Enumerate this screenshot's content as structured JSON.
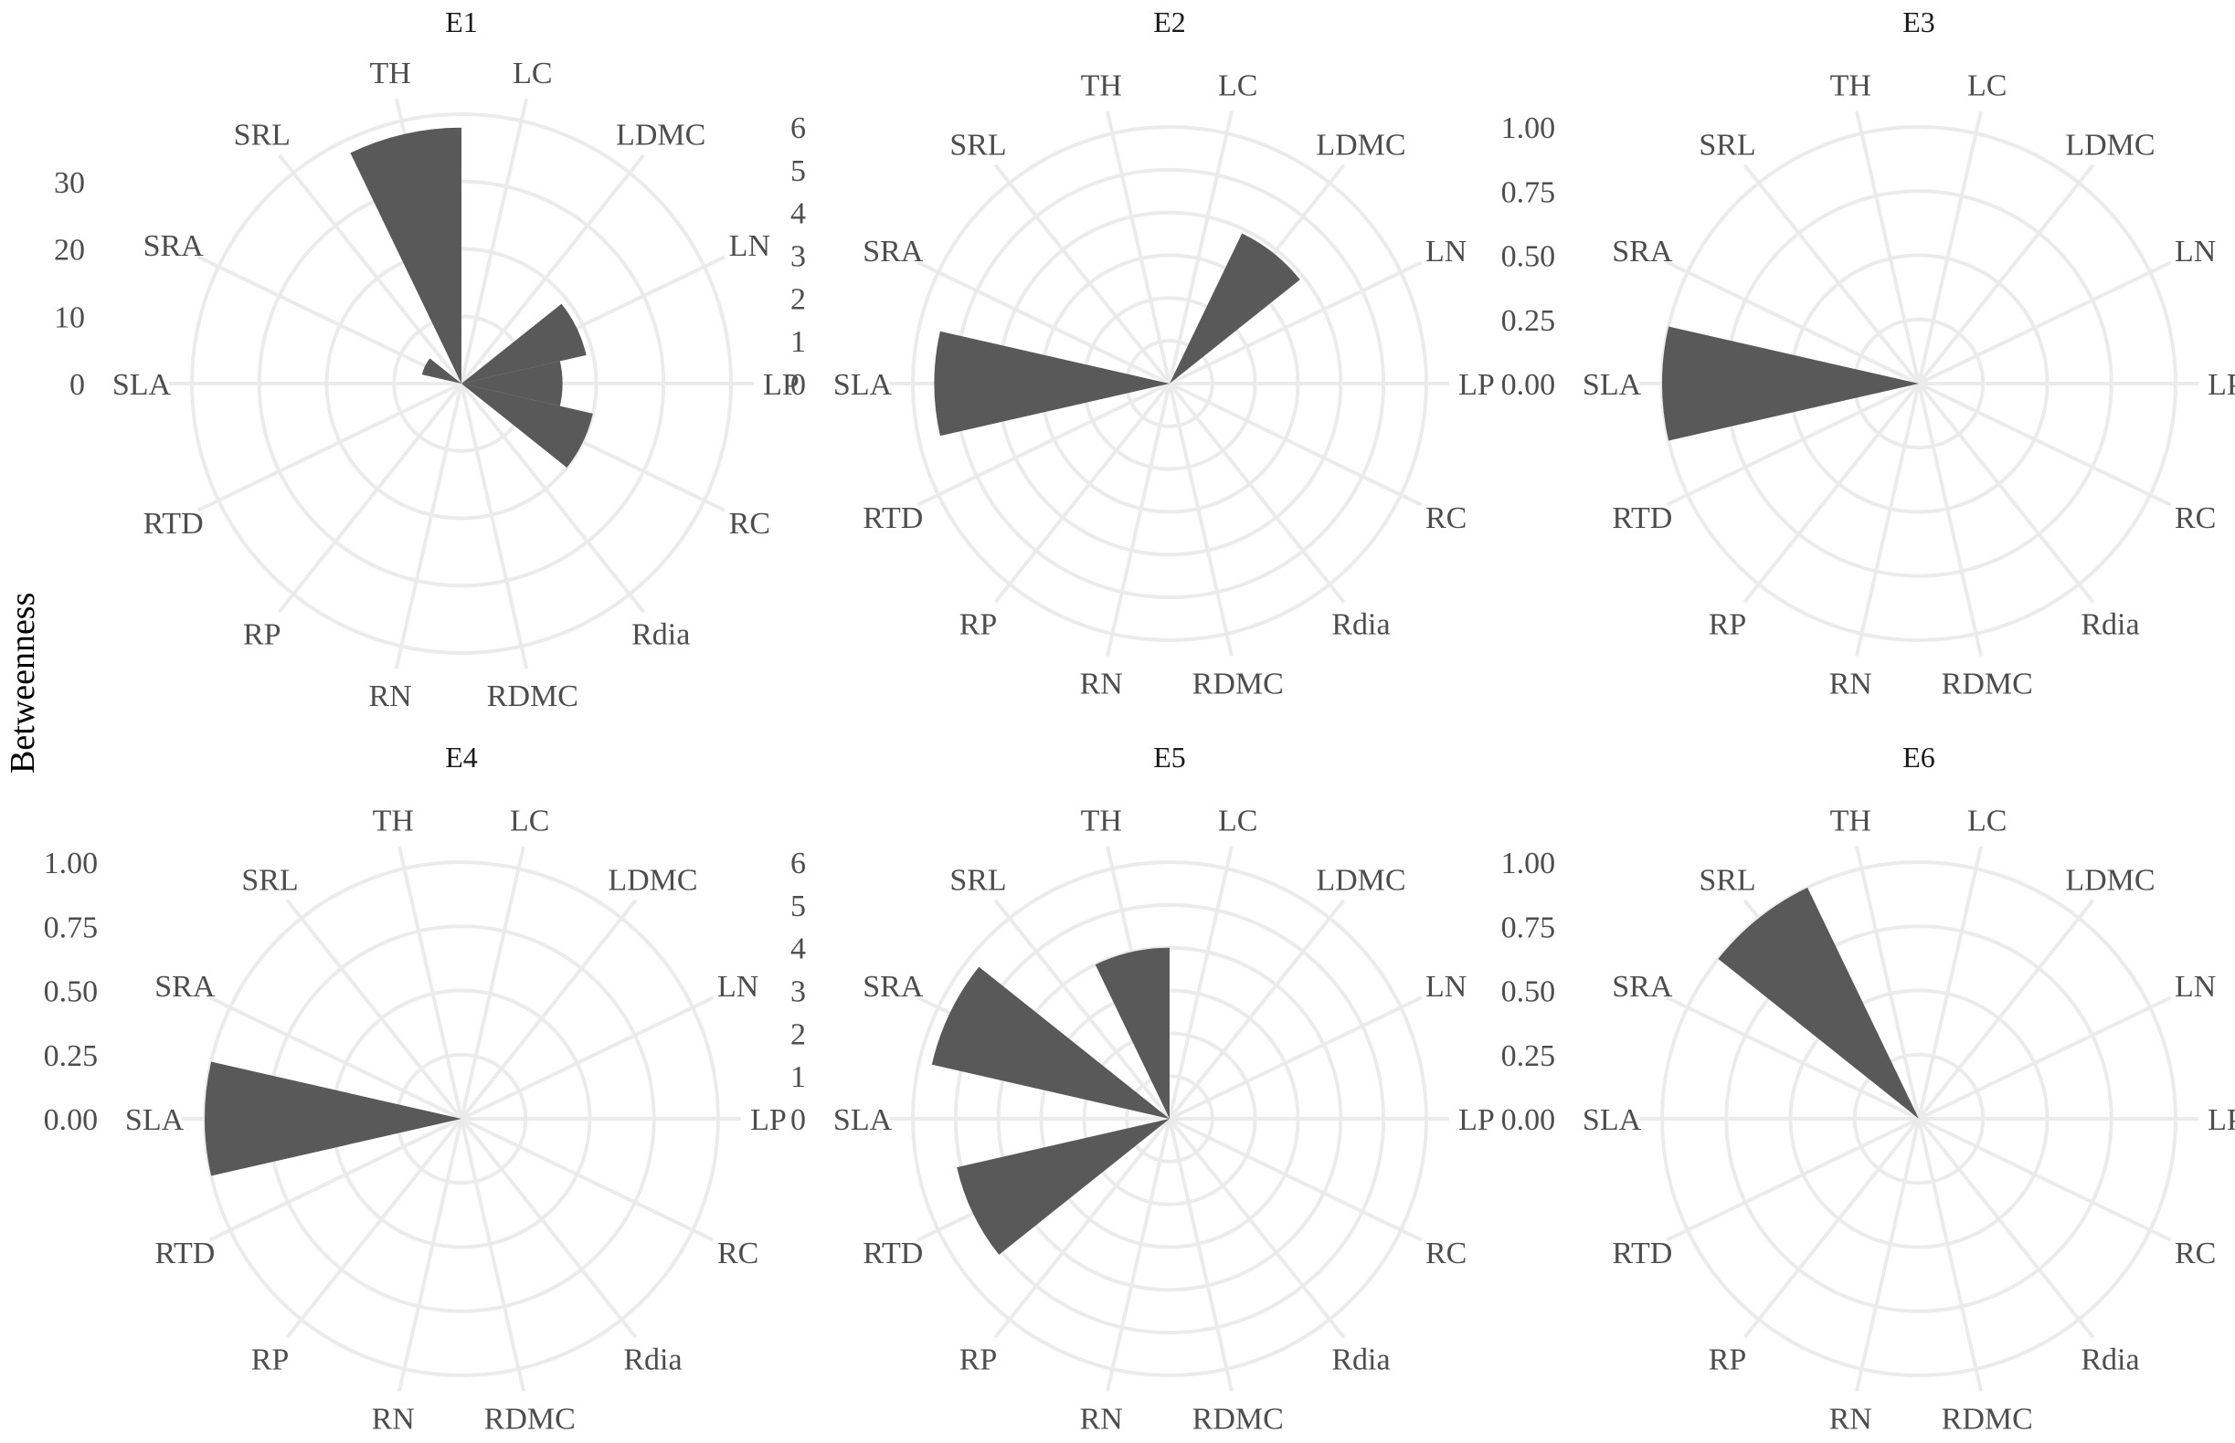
{
  "chart_data": {
    "type": "bar",
    "subtype": "polar-bar (coord_polar) small multiples",
    "ylabel": "Betweenness",
    "categories": [
      "LC",
      "LDMC",
      "LN",
      "LP",
      "RC",
      "Rdia",
      "RDMC",
      "RN",
      "RP",
      "RTD",
      "SLA",
      "SRA",
      "SRL",
      "TH"
    ],
    "grid": true,
    "bar_color": "#595959",
    "grid_color": "#ebebeb",
    "facets": [
      {
        "title": "E1",
        "ylim": [
          0,
          40
        ],
        "yticks": [
          "0",
          "10",
          "20",
          "30"
        ],
        "ytick_values": [
          0,
          10,
          20,
          30
        ],
        "rings": [
          10,
          20,
          30,
          40
        ],
        "values": {
          "LC": 0,
          "LDMC": 0,
          "LN": 19,
          "LP": 15,
          "RC": 20,
          "Rdia": 0,
          "RDMC": 0,
          "RN": 0,
          "RP": 0,
          "RTD": 0,
          "SLA": 0,
          "SRA": 6,
          "SRL": 0,
          "TH": 38
        }
      },
      {
        "title": "E2",
        "ylim": [
          0,
          6.3
        ],
        "yticks": [
          "0",
          "1",
          "2",
          "3",
          "4",
          "5",
          "6"
        ],
        "ytick_values": [
          0,
          1,
          2,
          3,
          4,
          5,
          6
        ],
        "rings": [
          1,
          2,
          3,
          4,
          5,
          6
        ],
        "values": {
          "LC": 0,
          "LDMC": 3.9,
          "LN": 0,
          "LP": 0,
          "RC": 0,
          "Rdia": 0,
          "RDMC": 0,
          "RN": 0,
          "RP": 0,
          "RTD": 0,
          "SLA": 5.5,
          "SRA": 0,
          "SRL": 0,
          "TH": 0
        }
      },
      {
        "title": "E3",
        "ylim": [
          0,
          1.05
        ],
        "yticks": [
          "0.00",
          "0.25",
          "0.50",
          "0.75",
          "1.00"
        ],
        "ytick_values": [
          0,
          0.25,
          0.5,
          0.75,
          1.0
        ],
        "rings": [
          0.25,
          0.5,
          0.75,
          1.0
        ],
        "values": {
          "LC": 0,
          "LDMC": 0,
          "LN": 0,
          "LP": 0,
          "RC": 0,
          "Rdia": 0,
          "RDMC": 0,
          "RN": 0,
          "RP": 0,
          "RTD": 0,
          "SLA": 1.0,
          "SRA": 0,
          "SRL": 0,
          "TH": 0
        }
      },
      {
        "title": "E4",
        "ylim": [
          0,
          1.05
        ],
        "yticks": [
          "0.00",
          "0.25",
          "0.50",
          "0.75",
          "1.00"
        ],
        "ytick_values": [
          0,
          0.25,
          0.5,
          0.75,
          1.0
        ],
        "rings": [
          0.25,
          0.5,
          0.75,
          1.0
        ],
        "values": {
          "LC": 0,
          "LDMC": 0,
          "LN": 0,
          "LP": 0,
          "RC": 0,
          "Rdia": 0,
          "RDMC": 0,
          "RN": 0,
          "RP": 0,
          "RTD": 0,
          "SLA": 1.0,
          "SRA": 0,
          "SRL": 0,
          "TH": 0
        }
      },
      {
        "title": "E5",
        "ylim": [
          0,
          6.3
        ],
        "yticks": [
          "0",
          "1",
          "2",
          "3",
          "4",
          "5",
          "6"
        ],
        "ytick_values": [
          0,
          1,
          2,
          3,
          4,
          5,
          6
        ],
        "rings": [
          1,
          2,
          3,
          4,
          5,
          6
        ],
        "values": {
          "LC": 0,
          "LDMC": 0,
          "LN": 0,
          "LP": 0,
          "RC": 0,
          "Rdia": 0,
          "RDMC": 0,
          "RN": 0,
          "RP": 0,
          "RTD": 5.1,
          "SLA": 0,
          "SRA": 5.7,
          "SRL": 0,
          "TH": 4.0
        }
      },
      {
        "title": "E6",
        "ylim": [
          0,
          1.05
        ],
        "yticks": [
          "0.00",
          "0.25",
          "0.50",
          "0.75",
          "1.00"
        ],
        "ytick_values": [
          0,
          0.25,
          0.5,
          0.75,
          1.0
        ],
        "rings": [
          0.25,
          0.5,
          0.75,
          1.0
        ],
        "values": {
          "LC": 0,
          "LDMC": 0,
          "LN": 0,
          "LP": 0,
          "RC": 0,
          "Rdia": 0,
          "RDMC": 0,
          "RN": 0,
          "RP": 0,
          "RTD": 0,
          "SLA": 0,
          "SRA": 0,
          "SRL": 1.0,
          "TH": 0
        }
      }
    ]
  }
}
